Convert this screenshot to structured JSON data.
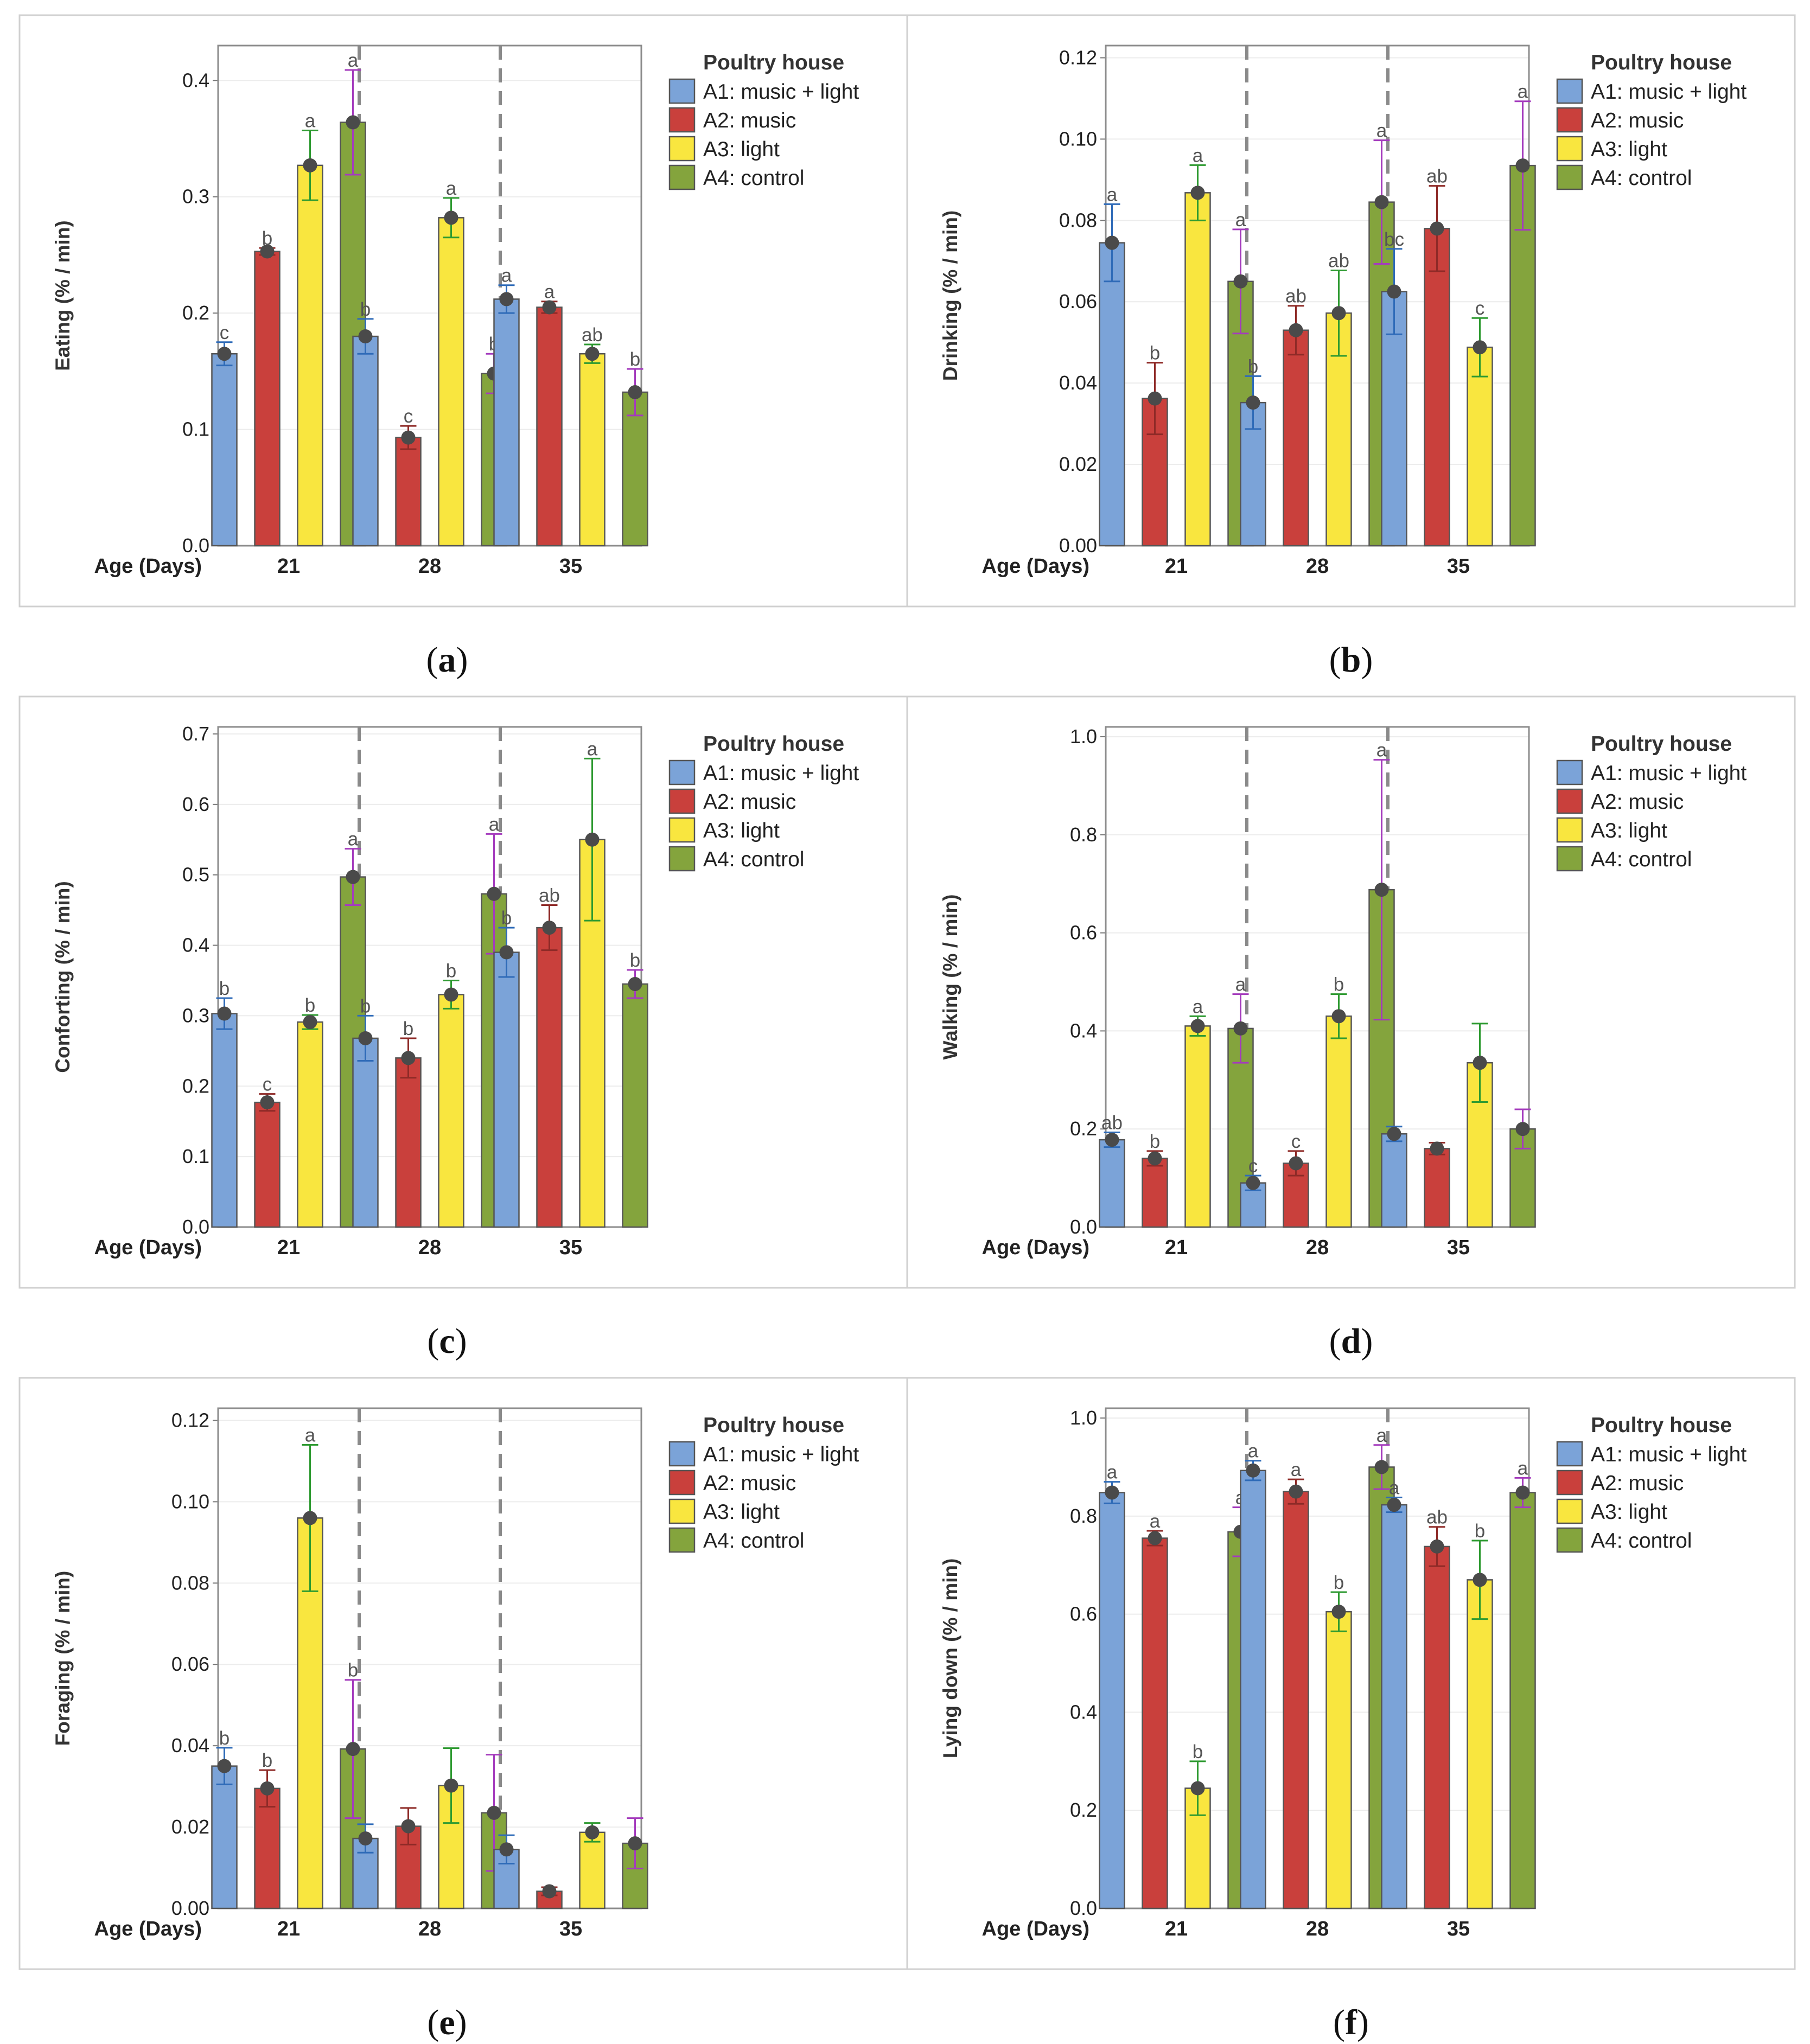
{
  "series_meta": [
    {
      "key": "A1",
      "name": "A1: music + light",
      "color": "#7ba3d8",
      "err": "#2f6bb8"
    },
    {
      "key": "A2",
      "name": "A2: music",
      "color": "#c9403c",
      "err": "#8e2a27"
    },
    {
      "key": "A3",
      "name": "A3: light",
      "color": "#f9e63f",
      "err": "#2e9a31"
    },
    {
      "key": "A4",
      "name": "A4: control",
      "color": "#84a43d",
      "err": "#a43bbd"
    }
  ],
  "colors": {
    "bar_stroke": "#555555",
    "point": "#4a4a4a",
    "divider": "#8a8a8a",
    "panel_border": "#d0d0d0"
  },
  "chart_data": [
    {
      "id": "a",
      "type": "bar",
      "caption_letter": "a",
      "ylabel": "Eating (% / min)",
      "xlabel": "Age (Days)",
      "legend_title": "Poultry house",
      "categories": [
        "21",
        "28",
        "35"
      ],
      "ylim": [
        0,
        0.43
      ],
      "yticks": [
        0.0,
        0.1,
        0.2,
        0.3,
        0.4
      ],
      "ytick_labels": [
        "0.0",
        "0.1",
        "0.2",
        "0.3",
        "0.4"
      ],
      "series": [
        {
          "name": "A1: music + light",
          "values": [
            0.165,
            0.18,
            0.212
          ],
          "errors": [
            0.01,
            0.015,
            0.012
          ],
          "letters": [
            "c",
            "b",
            "a"
          ]
        },
        {
          "name": "A2: music",
          "values": [
            0.253,
            0.093,
            0.205
          ],
          "errors": [
            0.003,
            0.01,
            0.005
          ],
          "letters": [
            "b",
            "c",
            "a"
          ]
        },
        {
          "name": "A3: light",
          "values": [
            0.327,
            0.282,
            0.165
          ],
          "errors": [
            0.03,
            0.017,
            0.008
          ],
          "letters": [
            "a",
            "a",
            "ab"
          ]
        },
        {
          "name": "A4: control",
          "values": [
            0.364,
            0.148,
            0.132
          ],
          "errors": [
            0.045,
            0.017,
            0.02
          ],
          "letters": [
            "a",
            "b",
            "b"
          ]
        }
      ]
    },
    {
      "id": "b",
      "type": "bar",
      "caption_letter": "b",
      "ylabel": "Drinking (% / min)",
      "xlabel": "Age (Days)",
      "legend_title": "Poultry house",
      "categories": [
        "21",
        "28",
        "35"
      ],
      "ylim": [
        0,
        0.123
      ],
      "yticks": [
        0.0,
        0.02,
        0.04,
        0.06,
        0.08,
        0.1,
        0.12
      ],
      "ytick_labels": [
        "0.00",
        "0.02",
        "0.04",
        "0.06",
        "0.08",
        "0.10",
        "0.12"
      ],
      "series": [
        {
          "name": "A1: music + light",
          "values": [
            0.0745,
            0.0352,
            0.0625
          ],
          "errors": [
            0.0095,
            0.0065,
            0.0105
          ],
          "letters": [
            "a",
            "b",
            "bc"
          ]
        },
        {
          "name": "A2: music",
          "values": [
            0.0362,
            0.053,
            0.078
          ],
          "errors": [
            0.0088,
            0.006,
            0.0105
          ],
          "letters": [
            "b",
            "ab",
            "ab"
          ]
        },
        {
          "name": "A3: light",
          "values": [
            0.0868,
            0.0572,
            0.0488
          ],
          "errors": [
            0.0068,
            0.0105,
            0.0072
          ],
          "letters": [
            "a",
            "ab",
            "c"
          ]
        },
        {
          "name": "A4: control",
          "values": [
            0.065,
            0.0845,
            0.0935
          ],
          "errors": [
            0.0128,
            0.0152,
            0.0158
          ],
          "letters": [
            "a",
            "a",
            "a"
          ]
        }
      ]
    },
    {
      "id": "c",
      "type": "bar",
      "caption_letter": "c",
      "ylabel": "Conforting (% / min)",
      "xlabel": "Age (Days)",
      "legend_title": "Poultry house",
      "categories": [
        "21",
        "28",
        "35"
      ],
      "ylim": [
        0,
        0.71
      ],
      "yticks": [
        0.0,
        0.1,
        0.2,
        0.3,
        0.4,
        0.5,
        0.6,
        0.7
      ],
      "ytick_labels": [
        "0.0",
        "0.1",
        "0.2",
        "0.3",
        "0.4",
        "0.5",
        "0.6",
        "0.7"
      ],
      "series": [
        {
          "name": "A1: music + light",
          "values": [
            0.303,
            0.268,
            0.39
          ],
          "errors": [
            0.022,
            0.032,
            0.035
          ],
          "letters": [
            "b",
            "b",
            "b"
          ]
        },
        {
          "name": "A2: music",
          "values": [
            0.177,
            0.24,
            0.425
          ],
          "errors": [
            0.012,
            0.028,
            0.032
          ],
          "letters": [
            "c",
            "b",
            "ab"
          ]
        },
        {
          "name": "A3: light",
          "values": [
            0.291,
            0.33,
            0.55
          ],
          "errors": [
            0.01,
            0.02,
            0.115
          ],
          "letters": [
            "b",
            "b",
            "a"
          ]
        },
        {
          "name": "A4: control",
          "values": [
            0.497,
            0.473,
            0.345
          ],
          "errors": [
            0.04,
            0.085,
            0.02
          ],
          "letters": [
            "a",
            "a",
            "b"
          ]
        }
      ]
    },
    {
      "id": "d",
      "type": "bar",
      "caption_letter": "d",
      "ylabel": "Walking (% / min)",
      "xlabel": "Age (Days)",
      "legend_title": "Poultry house",
      "categories": [
        "21",
        "28",
        "35"
      ],
      "ylim": [
        0,
        1.02
      ],
      "yticks": [
        0.0,
        0.2,
        0.4,
        0.6,
        0.8,
        1.0
      ],
      "ytick_labels": [
        "0.0",
        "0.2",
        "0.4",
        "0.6",
        "0.8",
        "1.0"
      ],
      "series": [
        {
          "name": "A1: music + light",
          "values": [
            0.178,
            0.09,
            0.19
          ],
          "errors": [
            0.015,
            0.015,
            0.015
          ],
          "letters": [
            "ab",
            "c",
            ""
          ]
        },
        {
          "name": "A2: music",
          "values": [
            0.14,
            0.13,
            0.16
          ],
          "errors": [
            0.015,
            0.025,
            0.012
          ],
          "letters": [
            "b",
            "c",
            ""
          ]
        },
        {
          "name": "A3: light",
          "values": [
            0.41,
            0.43,
            0.335
          ],
          "errors": [
            0.02,
            0.045,
            0.08
          ],
          "letters": [
            "a",
            "b",
            ""
          ]
        },
        {
          "name": "A4: control",
          "values": [
            0.405,
            0.688,
            0.2
          ],
          "errors": [
            0.07,
            0.265,
            0.04
          ],
          "letters": [
            "a",
            "a",
            ""
          ]
        }
      ]
    },
    {
      "id": "e",
      "type": "bar",
      "caption_letter": "e",
      "ylabel": "Foraging (% / min)",
      "xlabel": "Age (Days)",
      "legend_title": "Poultry house",
      "categories": [
        "21",
        "28",
        "35"
      ],
      "ylim": [
        0,
        0.123
      ],
      "yticks": [
        0.0,
        0.02,
        0.04,
        0.06,
        0.08,
        0.1,
        0.12
      ],
      "ytick_labels": [
        "0.00",
        "0.02",
        "0.04",
        "0.06",
        "0.08",
        "0.10",
        "0.12"
      ],
      "series": [
        {
          "name": "A1: music + light",
          "values": [
            0.035,
            0.0172,
            0.0145
          ],
          "errors": [
            0.0045,
            0.0035,
            0.0035
          ],
          "letters": [
            "b",
            "",
            ""
          ]
        },
        {
          "name": "A2: music",
          "values": [
            0.0295,
            0.0202,
            0.0042
          ],
          "errors": [
            0.0045,
            0.0045,
            0.001
          ],
          "letters": [
            "b",
            "",
            ""
          ]
        },
        {
          "name": "A3: light",
          "values": [
            0.096,
            0.0302,
            0.0187
          ],
          "errors": [
            0.018,
            0.0092,
            0.0023
          ],
          "letters": [
            "a",
            "",
            ""
          ]
        },
        {
          "name": "A4: control",
          "values": [
            0.0392,
            0.0235,
            0.016
          ],
          "errors": [
            0.017,
            0.0143,
            0.0062
          ],
          "letters": [
            "b",
            "",
            ""
          ]
        }
      ]
    },
    {
      "id": "f",
      "type": "bar",
      "caption_letter": "f",
      "ylabel": "Lying down (% / min)",
      "xlabel": "Age (Days)",
      "legend_title": "Poultry house",
      "categories": [
        "21",
        "28",
        "35"
      ],
      "ylim": [
        0,
        1.02
      ],
      "yticks": [
        0.0,
        0.2,
        0.4,
        0.6,
        0.8,
        1.0
      ],
      "ytick_labels": [
        "0.0",
        "0.2",
        "0.4",
        "0.6",
        "0.8",
        "1.0"
      ],
      "series": [
        {
          "name": "A1: music + light",
          "values": [
            0.848,
            0.893,
            0.823
          ],
          "errors": [
            0.022,
            0.02,
            0.015
          ],
          "letters": [
            "a",
            "a",
            "a"
          ]
        },
        {
          "name": "A2: music",
          "values": [
            0.755,
            0.85,
            0.738
          ],
          "errors": [
            0.015,
            0.025,
            0.04
          ],
          "letters": [
            "a",
            "a",
            "ab"
          ]
        },
        {
          "name": "A3: light",
          "values": [
            0.245,
            0.605,
            0.67
          ],
          "errors": [
            0.055,
            0.04,
            0.08
          ],
          "letters": [
            "b",
            "b",
            "b"
          ]
        },
        {
          "name": "A4: control",
          "values": [
            0.768,
            0.9,
            0.848
          ],
          "errors": [
            0.05,
            0.045,
            0.03
          ],
          "letters": [
            "a",
            "a",
            "a"
          ]
        }
      ]
    }
  ]
}
